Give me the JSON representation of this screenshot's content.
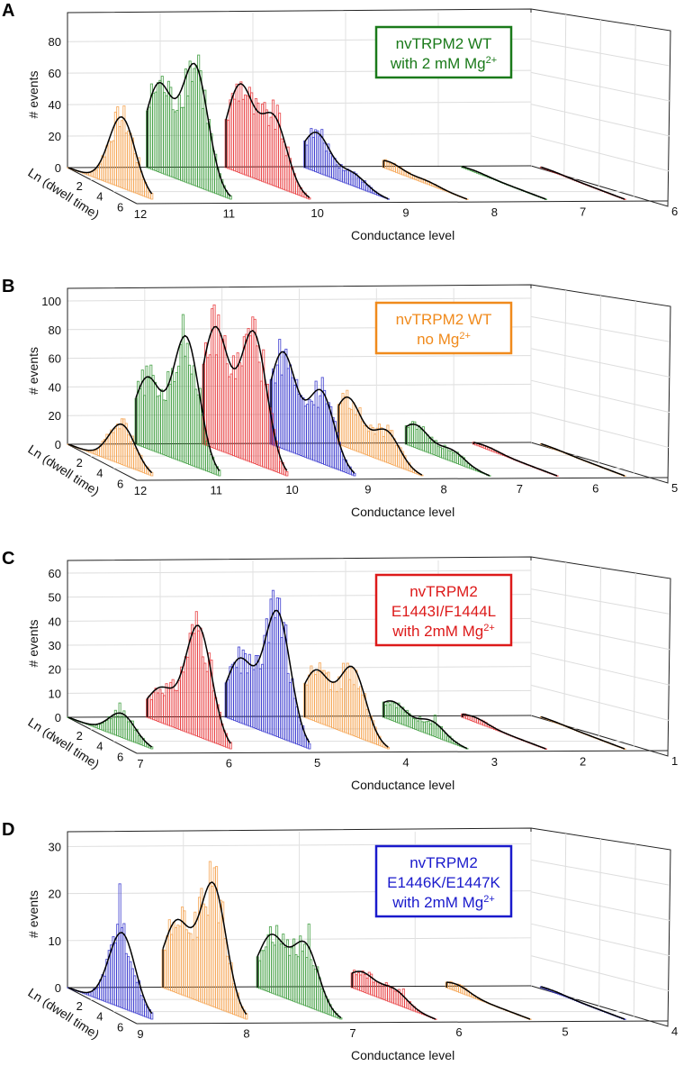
{
  "figure": {
    "common": {
      "xlabel": "Conductance level",
      "ylabel": "# events",
      "zlabel": "Ln (dwell time)",
      "z_ticks": [
        "2",
        "4",
        "6"
      ]
    },
    "colors": {
      "orange": "#f5a04a",
      "green": "#3a9a3a",
      "red": "#e8373a",
      "blue": "#3333cc",
      "fit": "#000000"
    }
  },
  "chart_data": [
    {
      "panel": "A",
      "type": "bar",
      "subtype": "3d-histogram-waterfall",
      "legend": {
        "lines": [
          "nvTRPM2 WT",
          "with 2 mM Mg"
        ],
        "superscript": "2+",
        "color": "#1a7a1a",
        "placement": "top-right"
      },
      "xlabel": "Conductance level",
      "ylabel": "# events",
      "zlabel": "Ln (dwell time)",
      "y_ticks": [
        0,
        20,
        40,
        60,
        80
      ],
      "ylim": [
        0,
        95
      ],
      "x_ticks": [
        "12",
        "11",
        "10",
        "9",
        "8",
        "7",
        "6"
      ],
      "series": [
        {
          "level": 12,
          "color": "orange",
          "fit_peaks": [
            [
              4.5,
              45
            ]
          ],
          "max_bar": 41
        },
        {
          "level": 11,
          "color": "green",
          "fit_peaks": [
            [
              1.0,
              55
            ],
            [
              4.0,
              76
            ]
          ],
          "max_bar": 91
        },
        {
          "level": 10,
          "color": "red",
          "fit_peaks": [
            [
              1.2,
              55
            ],
            [
              4.0,
              43
            ]
          ],
          "max_bar": 71
        },
        {
          "level": 9,
          "color": "blue",
          "fit_peaks": [
            [
              1.0,
              25
            ],
            [
              4.0,
              8
            ]
          ],
          "max_bar": 28
        },
        {
          "level": 8,
          "color": "orange",
          "fit_peaks": [
            [
              0.5,
              5
            ],
            [
              3.5,
              2
            ]
          ],
          "max_bar": 6
        },
        {
          "level": 7,
          "color": "green",
          "fit_peaks": [
            [
              1.0,
              1
            ]
          ],
          "max_bar": 2
        },
        {
          "level": 6,
          "color": "red",
          "fit_peaks": [
            [
              1.0,
              0.5
            ]
          ],
          "max_bar": 1
        }
      ]
    },
    {
      "panel": "B",
      "type": "bar",
      "subtype": "3d-histogram-waterfall",
      "legend": {
        "lines": [
          "nvTRPM2 WT",
          "no Mg"
        ],
        "superscript": "2+",
        "color": "#f08a1c",
        "placement": "top-right"
      },
      "xlabel": "Conductance level",
      "ylabel": "# events",
      "zlabel": "Ln (dwell time)",
      "y_ticks": [
        0,
        20,
        40,
        60,
        80,
        100
      ],
      "ylim": [
        0,
        105
      ],
      "x_ticks": [
        "12",
        "11",
        "10",
        "9",
        "8",
        "7",
        "6",
        "5"
      ],
      "series": [
        {
          "level": 12,
          "color": "orange",
          "fit_peaks": [
            [
              4.5,
              28
            ]
          ],
          "max_bar": 26
        },
        {
          "level": 11,
          "color": "green",
          "fit_peaks": [
            [
              1.0,
              49
            ],
            [
              4.2,
              88
            ]
          ],
          "max_bar": 85
        },
        {
          "level": 10,
          "color": "red",
          "fit_peaks": [
            [
              1.0,
              84
            ],
            [
              4.2,
              91
            ]
          ],
          "max_bar": 101
        },
        {
          "level": 9,
          "color": "blue",
          "fit_peaks": [
            [
              1.0,
              67
            ],
            [
              4.2,
              50
            ]
          ],
          "max_bar": 84
        },
        {
          "level": 8,
          "color": "orange",
          "fit_peaks": [
            [
              0.8,
              35
            ],
            [
              4.0,
              22
            ]
          ],
          "max_bar": 40
        },
        {
          "level": 7,
          "color": "green",
          "fit_peaks": [
            [
              0.8,
              16
            ],
            [
              3.8,
              8
            ]
          ],
          "max_bar": 18
        },
        {
          "level": 6,
          "color": "red",
          "fit_peaks": [
            [
              1.0,
              2
            ]
          ],
          "max_bar": 3
        },
        {
          "level": 5,
          "color": "orange",
          "fit_peaks": [
            [
              1.0,
              0.5
            ]
          ],
          "max_bar": 1
        }
      ]
    },
    {
      "panel": "C",
      "type": "bar",
      "subtype": "3d-histogram-waterfall",
      "legend": {
        "lines": [
          "nvTRPM2",
          "E1443I/F1444L",
          "with 2mM Mg"
        ],
        "superscript": "2+",
        "color": "#dd1a1a",
        "placement": "top-right"
      },
      "xlabel": "Conductance level",
      "ylabel": "# events",
      "zlabel": "Ln (dwell time)",
      "y_ticks": [
        0,
        10,
        20,
        30,
        40,
        50,
        60
      ],
      "ylim": [
        0,
        63
      ],
      "x_ticks": [
        "7",
        "6",
        "5",
        "4",
        "3",
        "2",
        "1"
      ],
      "series": [
        {
          "level": 7,
          "color": "green",
          "fit_peaks": [
            [
              4.5,
              10
            ]
          ],
          "max_bar": 15
        },
        {
          "level": 6,
          "color": "red",
          "fit_peaks": [
            [
              1.2,
              14
            ],
            [
              4.3,
              46
            ]
          ],
          "max_bar": 45
        },
        {
          "level": 5,
          "color": "blue",
          "fit_peaks": [
            [
              1.2,
              26
            ],
            [
              4.3,
              52
            ]
          ],
          "max_bar": 60
        },
        {
          "level": 4,
          "color": "orange",
          "fit_peaks": [
            [
              1.0,
              21
            ],
            [
              4.0,
              28
            ]
          ],
          "max_bar": 30
        },
        {
          "level": 3,
          "color": "green",
          "fit_peaks": [
            [
              0.8,
              8
            ],
            [
              4.0,
              6
            ]
          ],
          "max_bar": 13
        },
        {
          "level": 2,
          "color": "red",
          "fit_peaks": [
            [
              1.0,
              2
            ]
          ],
          "max_bar": 3
        },
        {
          "level": 1,
          "color": "orange",
          "fit_peaks": [
            [
              1.0,
              0.3
            ]
          ],
          "max_bar": 1
        }
      ]
    },
    {
      "panel": "D",
      "type": "bar",
      "subtype": "3d-histogram-waterfall",
      "legend": {
        "lines": [
          "nvTRPM2",
          "E1446K/E1447K",
          "with 2mM Mg"
        ],
        "superscript": "2+",
        "color": "#1a1acc",
        "placement": "top-right"
      },
      "xlabel": "Conductance level",
      "ylabel": "# events",
      "zlabel": "Ln (dwell time)",
      "y_ticks": [
        0,
        10,
        20,
        30
      ],
      "ylim": [
        0,
        32
      ],
      "x_ticks": [
        "9",
        "8",
        "7",
        "6",
        "5",
        "4"
      ],
      "series": [
        {
          "level": 9,
          "color": "blue",
          "fit_peaks": [
            [
              4.5,
              16
            ]
          ],
          "max_bar": 28
        },
        {
          "level": 8,
          "color": "orange",
          "fit_peaks": [
            [
              1.2,
              15
            ],
            [
              4.2,
              26
            ]
          ],
          "max_bar": 31
        },
        {
          "level": 7,
          "color": "green",
          "fit_peaks": [
            [
              1.2,
              12
            ],
            [
              4.0,
              13
            ]
          ],
          "max_bar": 19
        },
        {
          "level": 6,
          "color": "red",
          "fit_peaks": [
            [
              0.8,
              4
            ],
            [
              3.5,
              3
            ]
          ],
          "max_bar": 7
        },
        {
          "level": 5,
          "color": "orange",
          "fit_peaks": [
            [
              0.8,
              1.5
            ]
          ],
          "max_bar": 3
        },
        {
          "level": 4,
          "color": "blue",
          "fit_peaks": [
            [
              1.0,
              0.3
            ]
          ],
          "max_bar": 1
        }
      ]
    }
  ]
}
